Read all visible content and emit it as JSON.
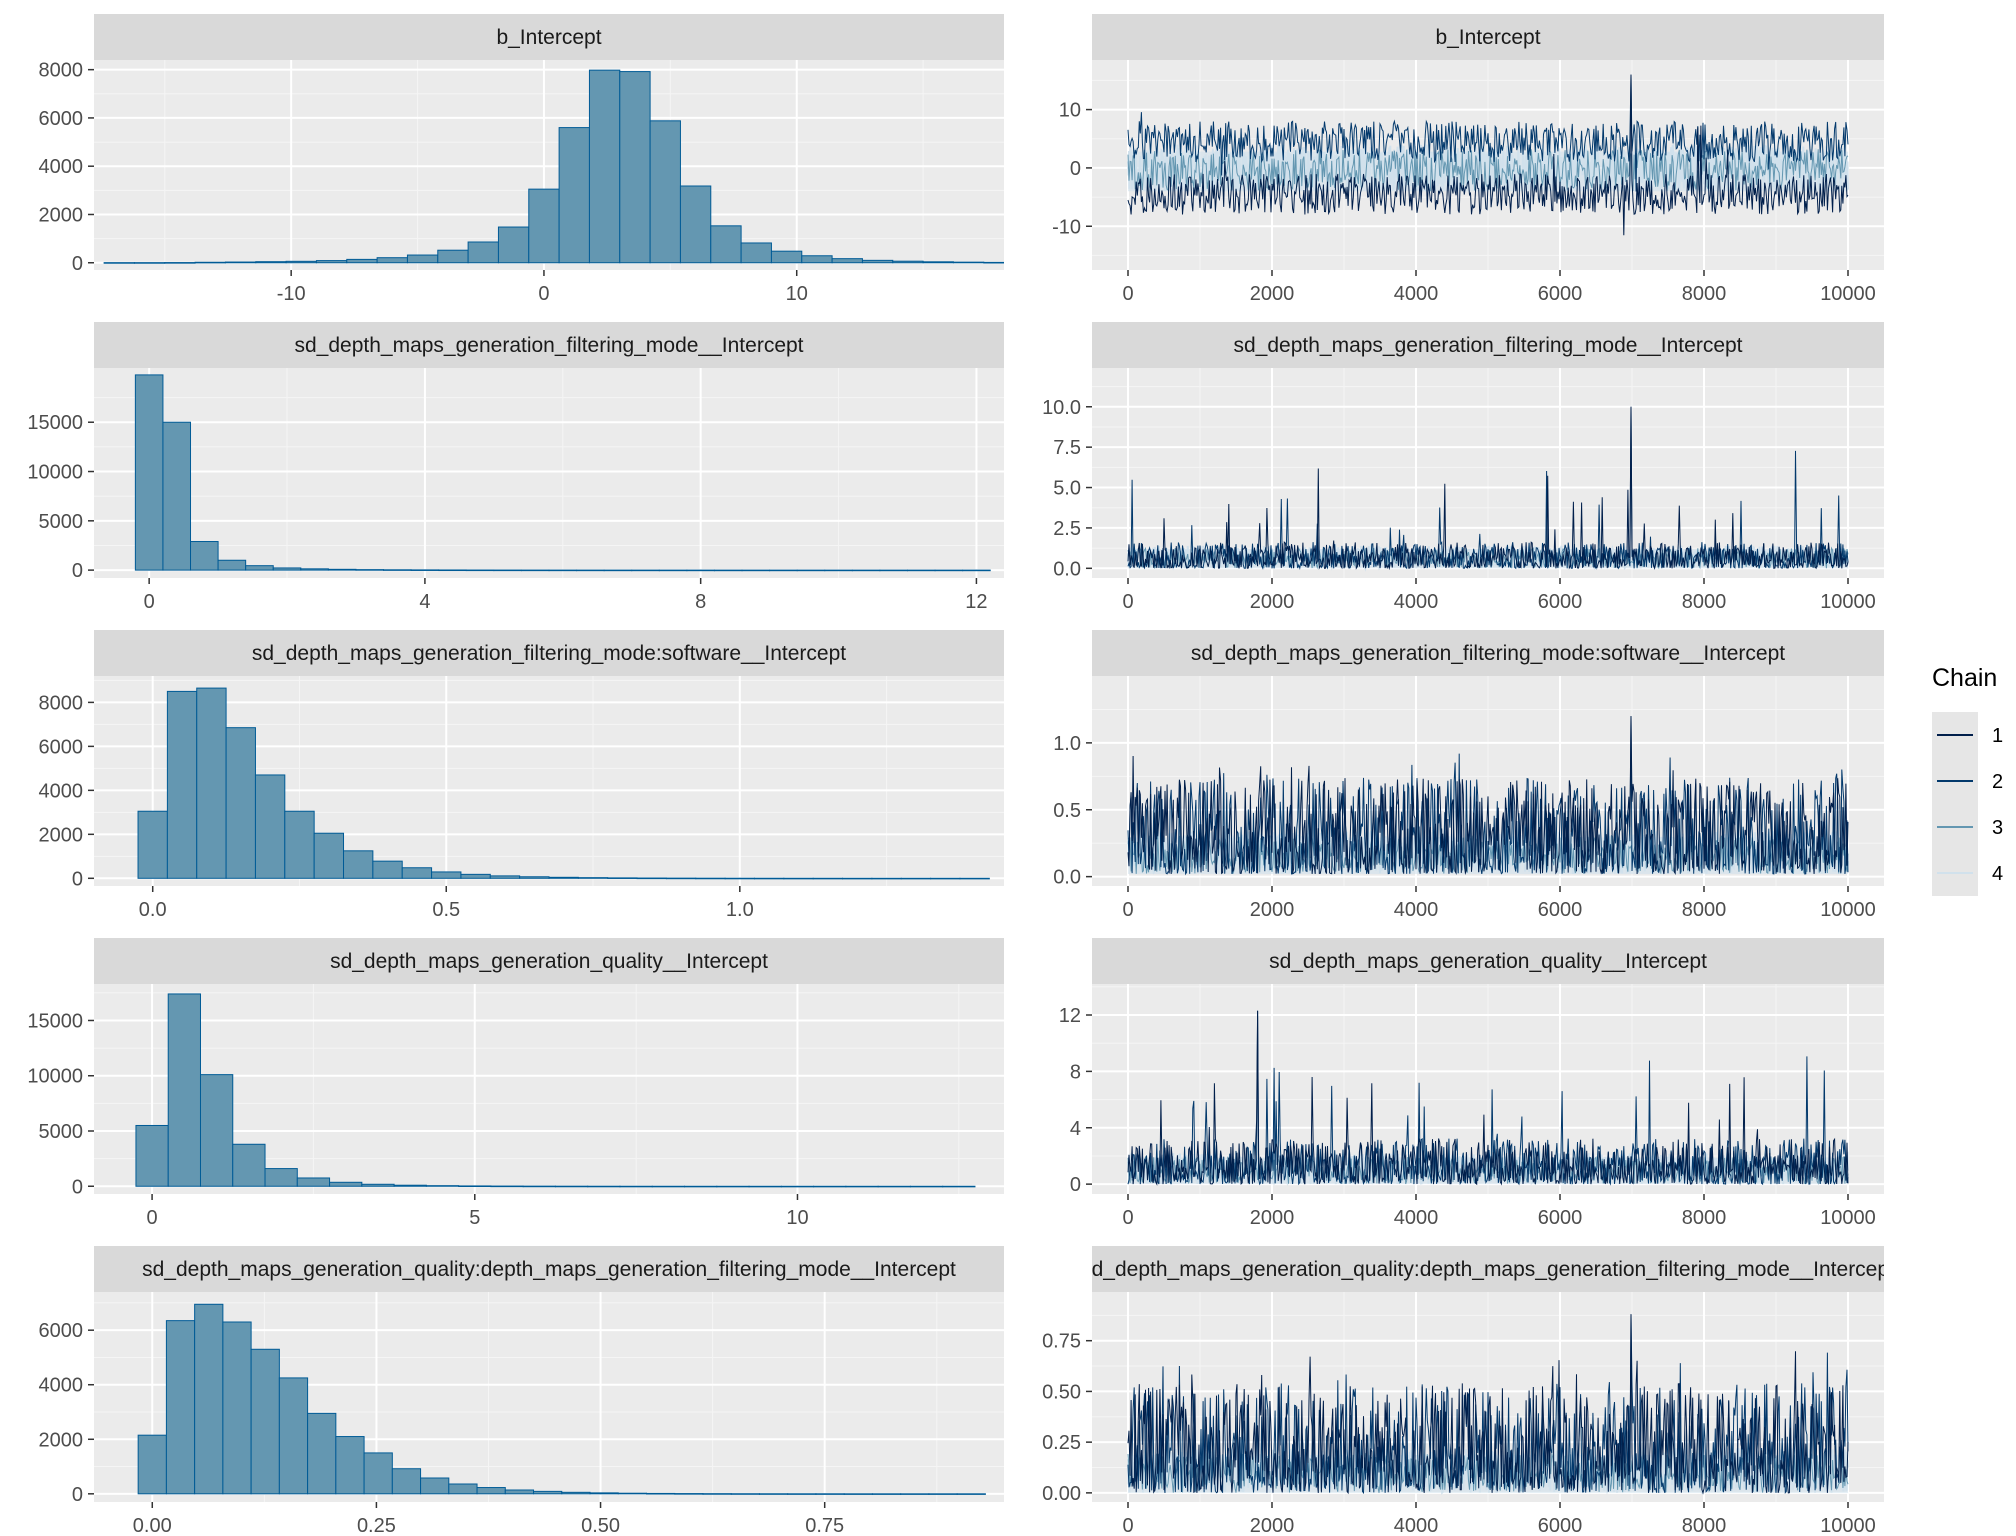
{
  "colors": {
    "panel_background": "#ebebeb",
    "strip_background": "#d9d9d9",
    "grid_major": "#ffffff",
    "grid_minor": "#f5f5f5",
    "histogram_fill": "#6497b1",
    "histogram_outline": "#005b96",
    "chain_1": "#011f4b",
    "chain_2": "#03396c",
    "chain_3": "#6497b1",
    "chain_4": "#d1e1ec"
  },
  "legend": {
    "title": "Chain",
    "placement": "right",
    "entries": [
      "1",
      "2",
      "3",
      "4"
    ]
  },
  "chart_data": [
    {
      "type": "bar",
      "panel": "histogram",
      "title": "b_Intercept",
      "bin_width": 1.2,
      "bin_start": -17.4,
      "values": [
        5,
        5,
        8,
        20,
        30,
        45,
        60,
        90,
        140,
        210,
        320,
        520,
        860,
        1480,
        3050,
        5600,
        7980,
        7920,
        5880,
        3180,
        1530,
        820,
        480,
        290,
        170,
        100,
        65,
        40,
        25,
        15
      ],
      "xlim": [
        -17.8,
        18.2
      ],
      "ylim": [
        -300,
        8400
      ],
      "xticks": [
        -10,
        0,
        10
      ],
      "xtick_labels": [
        "-10",
        "0",
        "10"
      ],
      "yticks": [
        0,
        2000,
        4000,
        6000,
        8000
      ],
      "ytick_labels": [
        "0",
        "2000",
        "4000",
        "6000",
        "8000"
      ]
    },
    {
      "type": "line",
      "panel": "trace",
      "title": "b_Intercept",
      "iterations": 10000,
      "center": 0,
      "band": [
        -4,
        4
      ],
      "spread": 3.5,
      "extreme": 16,
      "xlim": [
        -500,
        10500
      ],
      "ylim": [
        -17.5,
        18.5
      ],
      "xticks": [
        0,
        2000,
        4000,
        6000,
        8000,
        10000
      ],
      "xtick_labels": [
        "0",
        "2000",
        "4000",
        "6000",
        "8000",
        "10000"
      ],
      "yticks": [
        -10,
        0,
        10
      ],
      "ytick_labels": [
        "-10",
        "0",
        "10"
      ]
    },
    {
      "type": "bar",
      "panel": "histogram",
      "title": "sd_depth_maps_generation_filtering_mode__Intercept",
      "bin_width": 0.4,
      "bin_start": -0.2,
      "values": [
        19800,
        15000,
        2900,
        1000,
        450,
        220,
        130,
        80,
        50,
        35,
        25,
        18,
        12,
        9,
        7,
        5,
        4,
        3,
        3,
        2,
        2,
        1,
        1,
        1,
        1,
        1,
        1,
        1,
        1,
        1,
        1
      ],
      "xlim": [
        -0.8,
        12.4
      ],
      "ylim": [
        -800,
        20500
      ],
      "xticks": [
        0,
        4,
        8,
        12
      ],
      "xtick_labels": [
        "0",
        "4",
        "8",
        "12"
      ],
      "yticks": [
        0,
        5000,
        10000,
        15000
      ],
      "ytick_labels": [
        "0",
        "5000",
        "10000",
        "15000"
      ]
    },
    {
      "type": "line",
      "panel": "trace",
      "title": "sd_depth_maps_generation_filtering_mode__Intercept",
      "iterations": 10000,
      "center": 0.9,
      "band": [
        0,
        1.4
      ],
      "spread": 1.1,
      "extreme": 10,
      "xlim": [
        -500,
        10500
      ],
      "ylim": [
        -0.6,
        12.4
      ],
      "xticks": [
        0,
        2000,
        4000,
        6000,
        8000,
        10000
      ],
      "xtick_labels": [
        "0",
        "2000",
        "4000",
        "6000",
        "8000",
        "10000"
      ],
      "yticks": [
        0,
        2.5,
        5,
        7.5,
        10
      ],
      "ytick_labels": [
        "0.0",
        "2.5",
        "5.0",
        "7.5",
        "10.0"
      ]
    },
    {
      "type": "bar",
      "panel": "histogram",
      "title": "sd_depth_maps_generation_filtering_mode:software__Intercept",
      "bin_width": 0.05,
      "bin_start": -0.025,
      "values": [
        3050,
        8500,
        8650,
        6850,
        4700,
        3050,
        2050,
        1250,
        780,
        480,
        290,
        180,
        110,
        70,
        45,
        30,
        20,
        13,
        9,
        6,
        4,
        3,
        2,
        2,
        1,
        1,
        1,
        1,
        1
      ],
      "xlim": [
        -0.1,
        1.45
      ],
      "ylim": [
        -350,
        9200
      ],
      "xticks": [
        0,
        0.5,
        1.0
      ],
      "xtick_labels": [
        "0.0",
        "0.5",
        "1.0"
      ],
      "yticks": [
        0,
        2000,
        4000,
        6000,
        8000
      ],
      "ytick_labels": [
        "0",
        "2000",
        "4000",
        "6000",
        "8000"
      ]
    },
    {
      "type": "line",
      "panel": "trace",
      "title": "sd_depth_maps_generation_filtering_mode:software__Intercept",
      "iterations": 10000,
      "center": 0.4,
      "band": [
        0.02,
        0.34
      ],
      "spread": 0.18,
      "extreme": 1.2,
      "xlim": [
        -500,
        10500
      ],
      "ylim": [
        -0.07,
        1.5
      ],
      "xticks": [
        0,
        2000,
        4000,
        6000,
        8000,
        10000
      ],
      "xtick_labels": [
        "0",
        "2000",
        "4000",
        "6000",
        "8000",
        "10000"
      ],
      "yticks": [
        0,
        0.5,
        1.0
      ],
      "ytick_labels": [
        "0.0",
        "0.5",
        "1.0"
      ]
    },
    {
      "type": "bar",
      "panel": "histogram",
      "title": "sd_depth_maps_generation_quality__Intercept",
      "bin_width": 0.5,
      "bin_start": -0.25,
      "values": [
        5500,
        17400,
        10100,
        3800,
        1600,
        750,
        360,
        180,
        95,
        55,
        32,
        20,
        13,
        9,
        6,
        4,
        3,
        2,
        2,
        1,
        1,
        1,
        1,
        1,
        1,
        1
      ],
      "xlim": [
        -0.9,
        13.2
      ],
      "ylim": [
        -700,
        18300
      ],
      "xticks": [
        0,
        5,
        10
      ],
      "xtick_labels": [
        "0",
        "5",
        "10"
      ],
      "yticks": [
        0,
        5000,
        10000,
        15000
      ],
      "ytick_labels": [
        "0",
        "5000",
        "10000",
        "15000"
      ]
    },
    {
      "type": "line",
      "panel": "trace",
      "title": "sd_depth_maps_generation_quality__Intercept",
      "iterations": 10000,
      "center": 1.8,
      "band": [
        0,
        2.2
      ],
      "spread": 1.2,
      "extreme": 12.3,
      "xlim": [
        -500,
        10500
      ],
      "ylim": [
        -0.7,
        14.2
      ],
      "xticks": [
        0,
        2000,
        4000,
        6000,
        8000,
        10000
      ],
      "xtick_labels": [
        "0",
        "2000",
        "4000",
        "6000",
        "8000",
        "10000"
      ],
      "yticks": [
        0,
        4,
        8,
        12
      ],
      "ytick_labels": [
        "0",
        "4",
        "8",
        "12"
      ]
    },
    {
      "type": "bar",
      "panel": "histogram",
      "title": "sd_depth_maps_generation_quality:depth_maps_generation_filtering_mode__Intercept",
      "bin_width": 0.0315,
      "bin_start": -0.01575,
      "values": [
        2150,
        6350,
        6950,
        6300,
        5300,
        4250,
        2950,
        2100,
        1500,
        920,
        580,
        360,
        230,
        140,
        90,
        55,
        35,
        22,
        14,
        9,
        6,
        4,
        3,
        2,
        2,
        1,
        1,
        1,
        1,
        1
      ],
      "xlim": [
        -0.065,
        0.95
      ],
      "ylim": [
        -300,
        7400
      ],
      "xticks": [
        0,
        0.25,
        0.5,
        0.75
      ],
      "xtick_labels": [
        "0.00",
        "0.25",
        "0.50",
        "0.75"
      ],
      "yticks": [
        0,
        2000,
        4000,
        6000
      ],
      "ytick_labels": [
        "0",
        "2000",
        "4000",
        "6000"
      ]
    },
    {
      "type": "line",
      "panel": "trace",
      "title": "sd_depth_maps_generation_quality:depth_maps_generation_filtering_mode__Intercept",
      "iterations": 10000,
      "center": 0.3,
      "band": [
        0,
        0.22
      ],
      "spread": 0.13,
      "extreme": 0.88,
      "xlim": [
        -500,
        10500
      ],
      "ylim": [
        -0.045,
        0.99
      ],
      "xticks": [
        0,
        2000,
        4000,
        6000,
        8000,
        10000
      ],
      "xtick_labels": [
        "0",
        "2000",
        "4000",
        "6000",
        "8000",
        "10000"
      ],
      "yticks": [
        0,
        0.25,
        0.5,
        0.75
      ],
      "ytick_labels": [
        "0.00",
        "0.25",
        "0.50",
        "0.75"
      ]
    }
  ]
}
